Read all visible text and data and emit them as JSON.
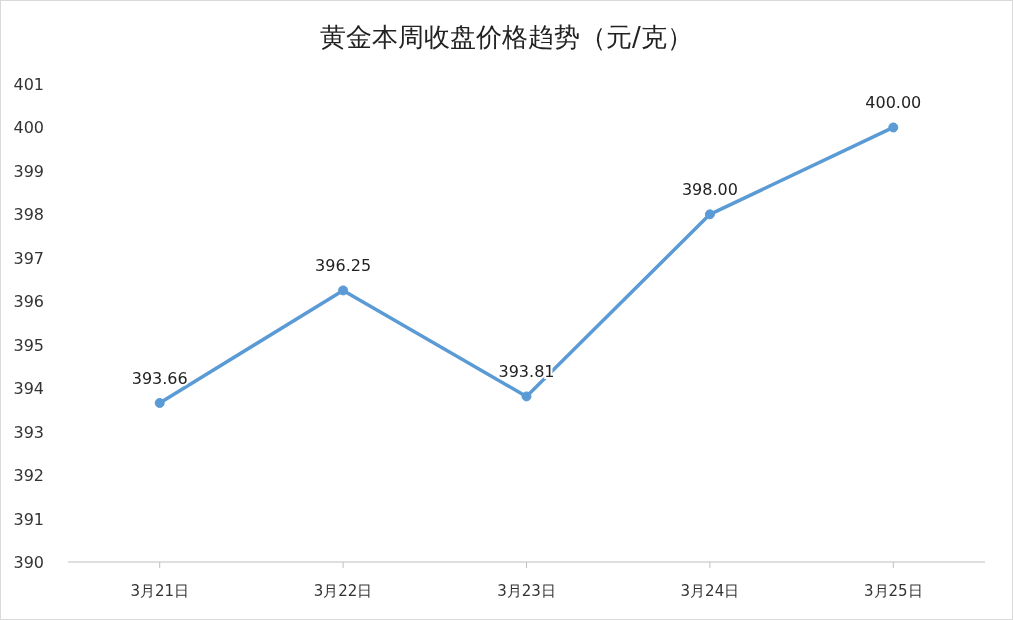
{
  "chart_data": {
    "type": "line",
    "title": "黄金本周收盘价格趋势（元/克）",
    "categories": [
      "3月21日",
      "3月22日",
      "3月23日",
      "3月24日",
      "3月25日"
    ],
    "series": [
      {
        "color": "#5b9bd5",
        "values": [
          393.66,
          396.25,
          393.81,
          398.0,
          400.0
        ],
        "value_labels": [
          "393.66",
          "396.25",
          "393.81",
          "398.00",
          "400.00"
        ]
      }
    ],
    "ylim": [
      390,
      401
    ],
    "yticks": [
      390,
      391,
      392,
      393,
      394,
      395,
      396,
      397,
      398,
      399,
      400,
      401
    ],
    "grid": false,
    "marker": "circle",
    "line_style": "solid"
  }
}
